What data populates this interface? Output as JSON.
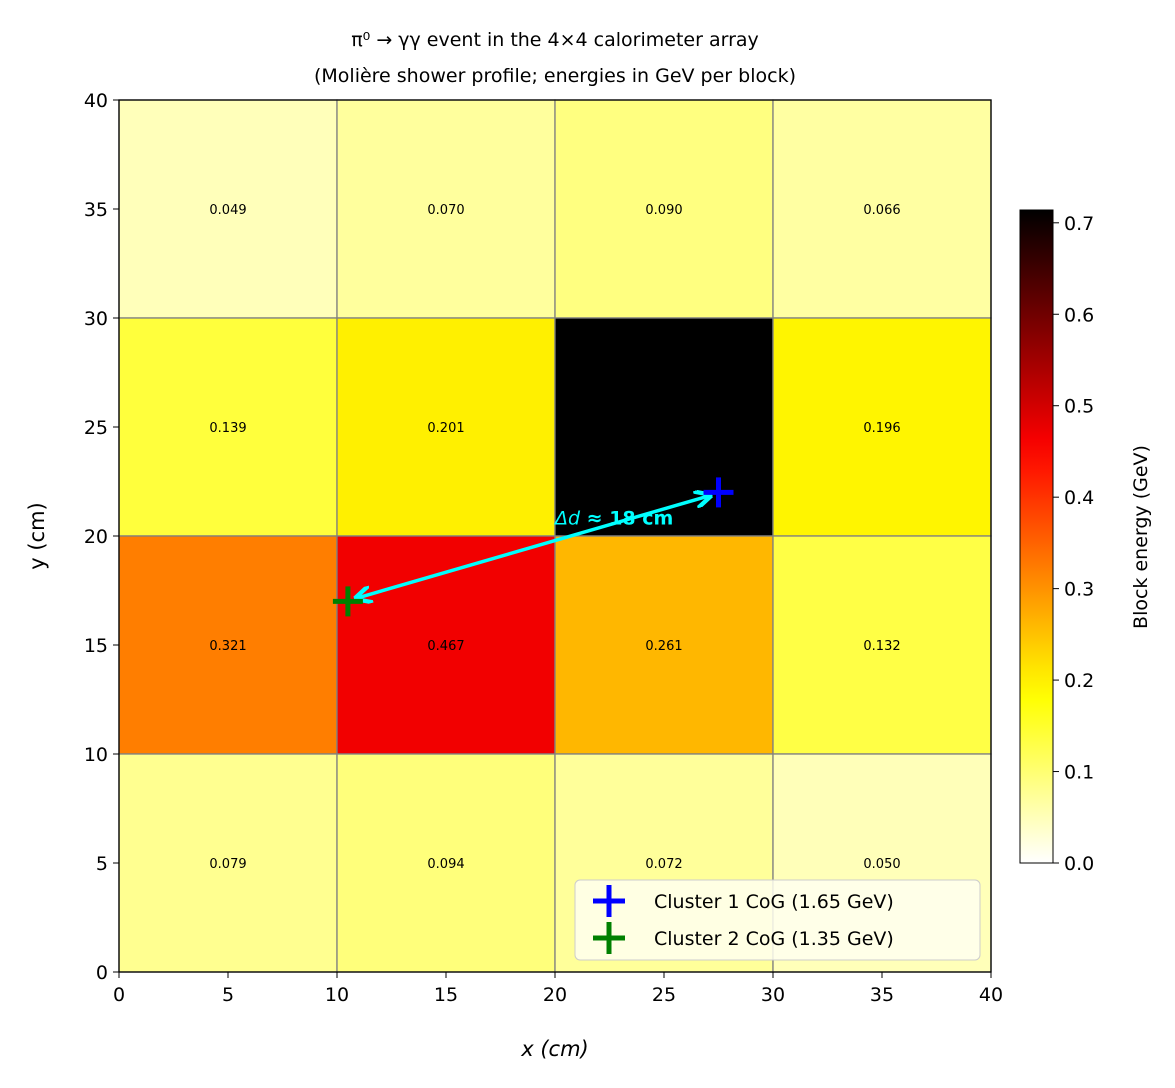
{
  "chart_data": {
    "type": "heatmap",
    "title": "π⁰ → γγ event in the 4×4 calorimeter array",
    "subtitle": "(Molière shower profile; energies in GeV per block)",
    "xlabel": "x (cm)",
    "ylabel": "y (cm)",
    "xlim": [
      0,
      40
    ],
    "ylim": [
      0,
      40
    ],
    "xticks": [
      0,
      5,
      10,
      15,
      20,
      25,
      30,
      35,
      40
    ],
    "yticks": [
      0,
      5,
      10,
      15,
      20,
      25,
      30,
      35,
      40
    ],
    "block_edges": [
      0,
      10,
      20,
      30,
      40
    ],
    "rows_top_to_bottom": [
      [
        0.049,
        0.07,
        0.09,
        0.066
      ],
      [
        0.139,
        0.201,
        0.714,
        0.196
      ],
      [
        0.321,
        0.467,
        0.261,
        0.132
      ],
      [
        0.079,
        0.094,
        0.072,
        0.05
      ]
    ],
    "colormap": "hot_r",
    "colorbar": {
      "label": "Block energy (GeV)",
      "range": [
        0,
        0.714
      ],
      "ticks": [
        0.0,
        0.1,
        0.2,
        0.3,
        0.4,
        0.5,
        0.6,
        0.7
      ]
    },
    "markers": [
      {
        "name": "Cluster 1 CoG (1.65 GeV)",
        "x": 27.5,
        "y": 22,
        "color": "#0000ff"
      },
      {
        "name": "Cluster 2 CoG (1.35 GeV)",
        "x": 10.5,
        "y": 17,
        "color": "#008000"
      }
    ],
    "annotation": {
      "text_italic": "Δd",
      "text": " ≈ 18 cm",
      "color": "#00ffff",
      "x": 20,
      "y": 20.8
    },
    "legend_placement": "lower-right",
    "grid_color": "#808080"
  }
}
